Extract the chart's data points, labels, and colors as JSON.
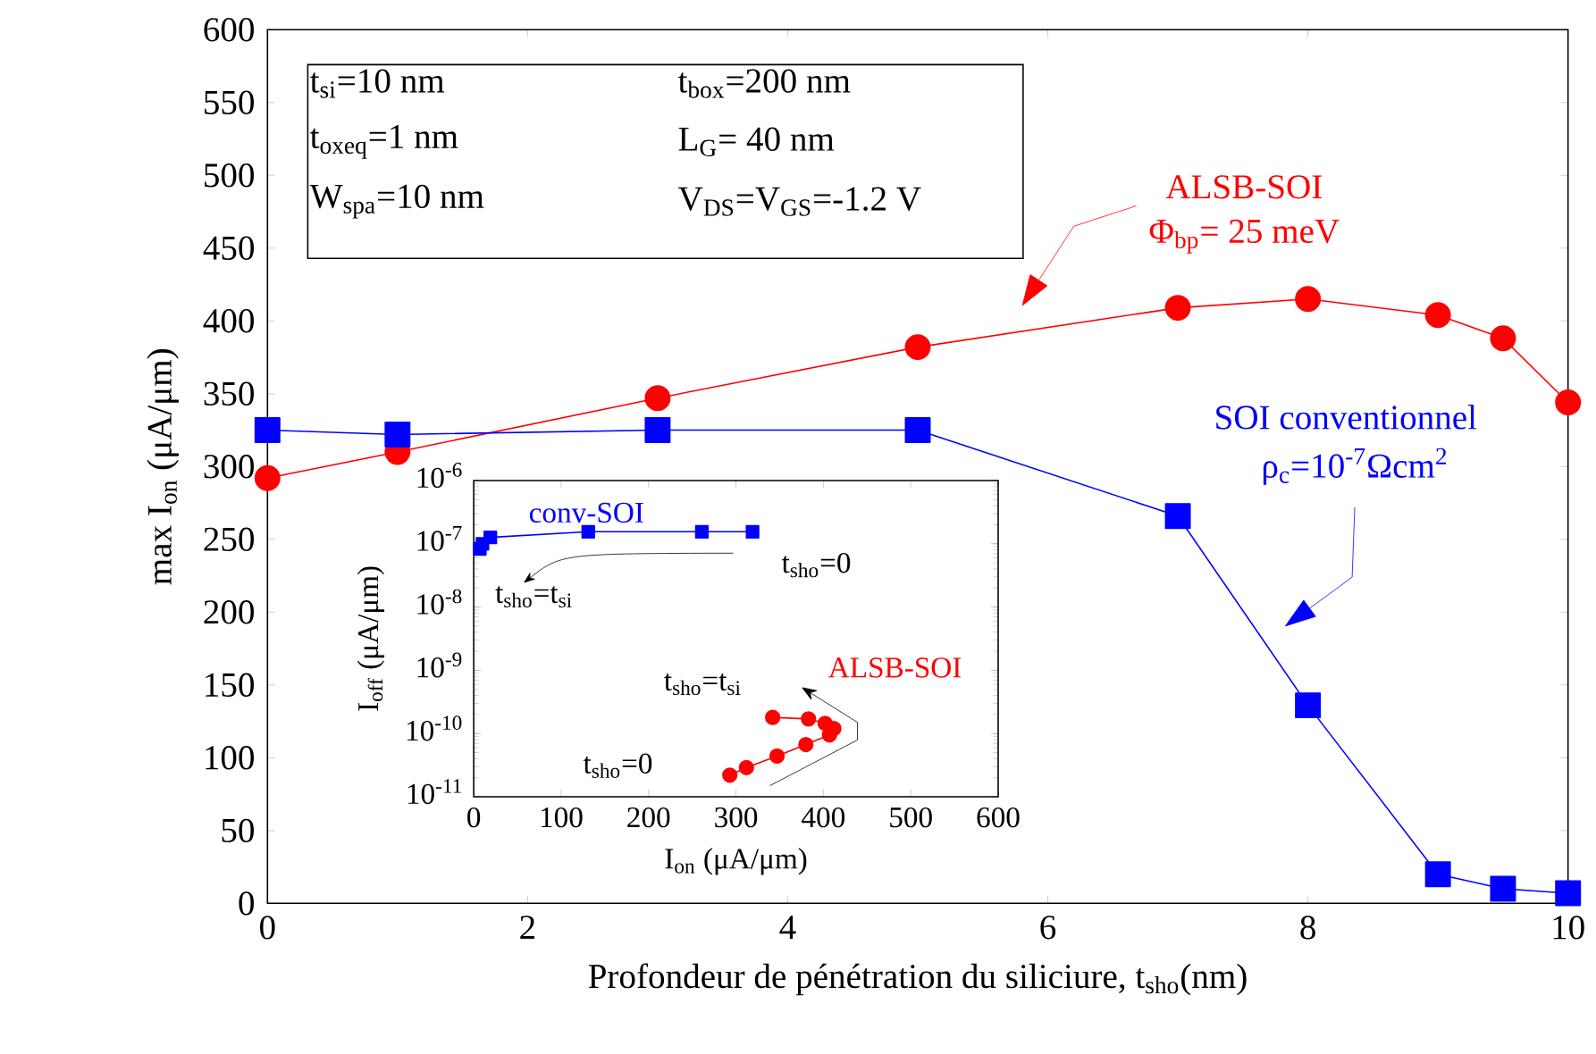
{
  "chart_data": [
    {
      "type": "line",
      "xlabel": "Profondeur de pénétration du siliciure, t$_{sho}$(nm)",
      "ylabel": "max I$_{on}$ (μA/μm)",
      "xlim": [
        0,
        10
      ],
      "ylim": [
        0,
        600
      ],
      "xticks": [
        0,
        2,
        4,
        6,
        8,
        10
      ],
      "yticks": [
        0,
        50,
        100,
        150,
        200,
        250,
        300,
        350,
        400,
        450,
        500,
        550,
        600
      ],
      "series": [
        {
          "name": "ALSB-SOI",
          "color": "#ff0000",
          "marker": "circle",
          "x": [
            0,
            1,
            3,
            5,
            7,
            8,
            9,
            9.5,
            10
          ],
          "values": [
            292,
            310,
            347,
            382,
            409,
            415,
            404,
            388,
            344
          ]
        },
        {
          "name": "SOI conventionnel",
          "color": "#0000ff",
          "marker": "square",
          "x": [
            0,
            1,
            3,
            5,
            7,
            8,
            9,
            9.5,
            10
          ],
          "values": [
            325,
            322,
            325,
            325,
            266,
            136,
            20,
            10,
            7
          ]
        }
      ],
      "annotations": [
        "t$_{si}$=10 nm",
        "t$_{oxeq}$=1 nm",
        "W$_{spa}$=10 nm",
        "t$_{box}$=200 nm",
        "L$_{G}$= 40 nm",
        "V$_{DS}$=V$_{GS}$=-1.2 V",
        "Φ$_{bp}$= 25 meV",
        "ρ$_{c}$=10$^{-7}$Ωcm$^{2}$"
      ]
    },
    {
      "type": "line",
      "xlabel": "I$_{on}$ (μA/μm)",
      "ylabel": "I$_{off}$ (μA/μm)",
      "log": "y",
      "xlim": [
        0,
        600
      ],
      "ylim": [
        1e-11,
        1e-06
      ],
      "xticks": [
        0,
        100,
        200,
        300,
        400,
        500,
        600
      ],
      "yticks": [
        {
          "value": 1e-11,
          "label": "10$^{-11}$"
        },
        {
          "value": 1e-10,
          "label": "10$^{-10}$"
        },
        {
          "value": 1e-09,
          "label": "10$^{-9}$"
        },
        {
          "value": 1e-08,
          "label": "10$^{-8}$"
        },
        {
          "value": 1e-07,
          "label": "10$^{-7}$"
        },
        {
          "value": 1e-06,
          "label": "10$^{-6}$"
        }
      ],
      "series": [
        {
          "name": "conv-SOI",
          "color": "#0000ff",
          "marker": "square",
          "x": [
            7,
            10,
            19,
            131,
            261,
            319
          ],
          "values": [
            8.3e-08,
            1e-07,
            1.26e-07,
            1.55e-07,
            1.55e-07,
            1.55e-07
          ]
        },
        {
          "name": "ALSB-SOI",
          "color": "#ff0000",
          "marker": "circle",
          "x": [
            293,
            312,
            347,
            380,
            407,
            412,
            402,
            383,
            342
          ],
          "values": [
            2.2e-11,
            2.9e-11,
            4.4e-11,
            6.7e-11,
            9.5e-11,
            1.2e-10,
            1.45e-10,
            1.7e-10,
            1.8e-10
          ]
        }
      ],
      "annotations": [
        "t$_{sho}$=0",
        "t$_{sho}$=t$_{si}$",
        "t$_{sho}$=t$_{si}$",
        "t$_{sho}$=0"
      ]
    }
  ]
}
